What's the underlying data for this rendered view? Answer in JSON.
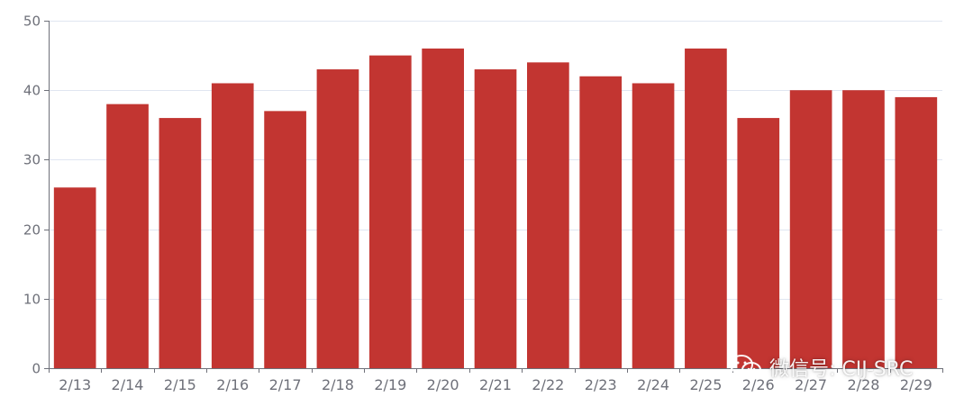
{
  "chart_data": {
    "type": "bar",
    "title": "",
    "xlabel": "",
    "ylabel": "",
    "categories": [
      "2/13",
      "2/14",
      "2/15",
      "2/16",
      "2/17",
      "2/18",
      "2/19",
      "2/20",
      "2/21",
      "2/22",
      "2/23",
      "2/24",
      "2/25",
      "2/26",
      "2/27",
      "2/28",
      "2/29"
    ],
    "values": [
      26,
      38,
      36,
      41,
      37,
      43,
      45,
      46,
      43,
      44,
      42,
      41,
      46,
      36,
      40,
      40,
      39
    ],
    "ylim": [
      0,
      50
    ],
    "yticks": [
      0,
      10,
      20,
      30,
      40,
      50
    ],
    "grid": true,
    "bar_color": "#c23531"
  },
  "watermark": {
    "icon": "wechat-icon",
    "text": "微信号: CIJ-SRC"
  }
}
